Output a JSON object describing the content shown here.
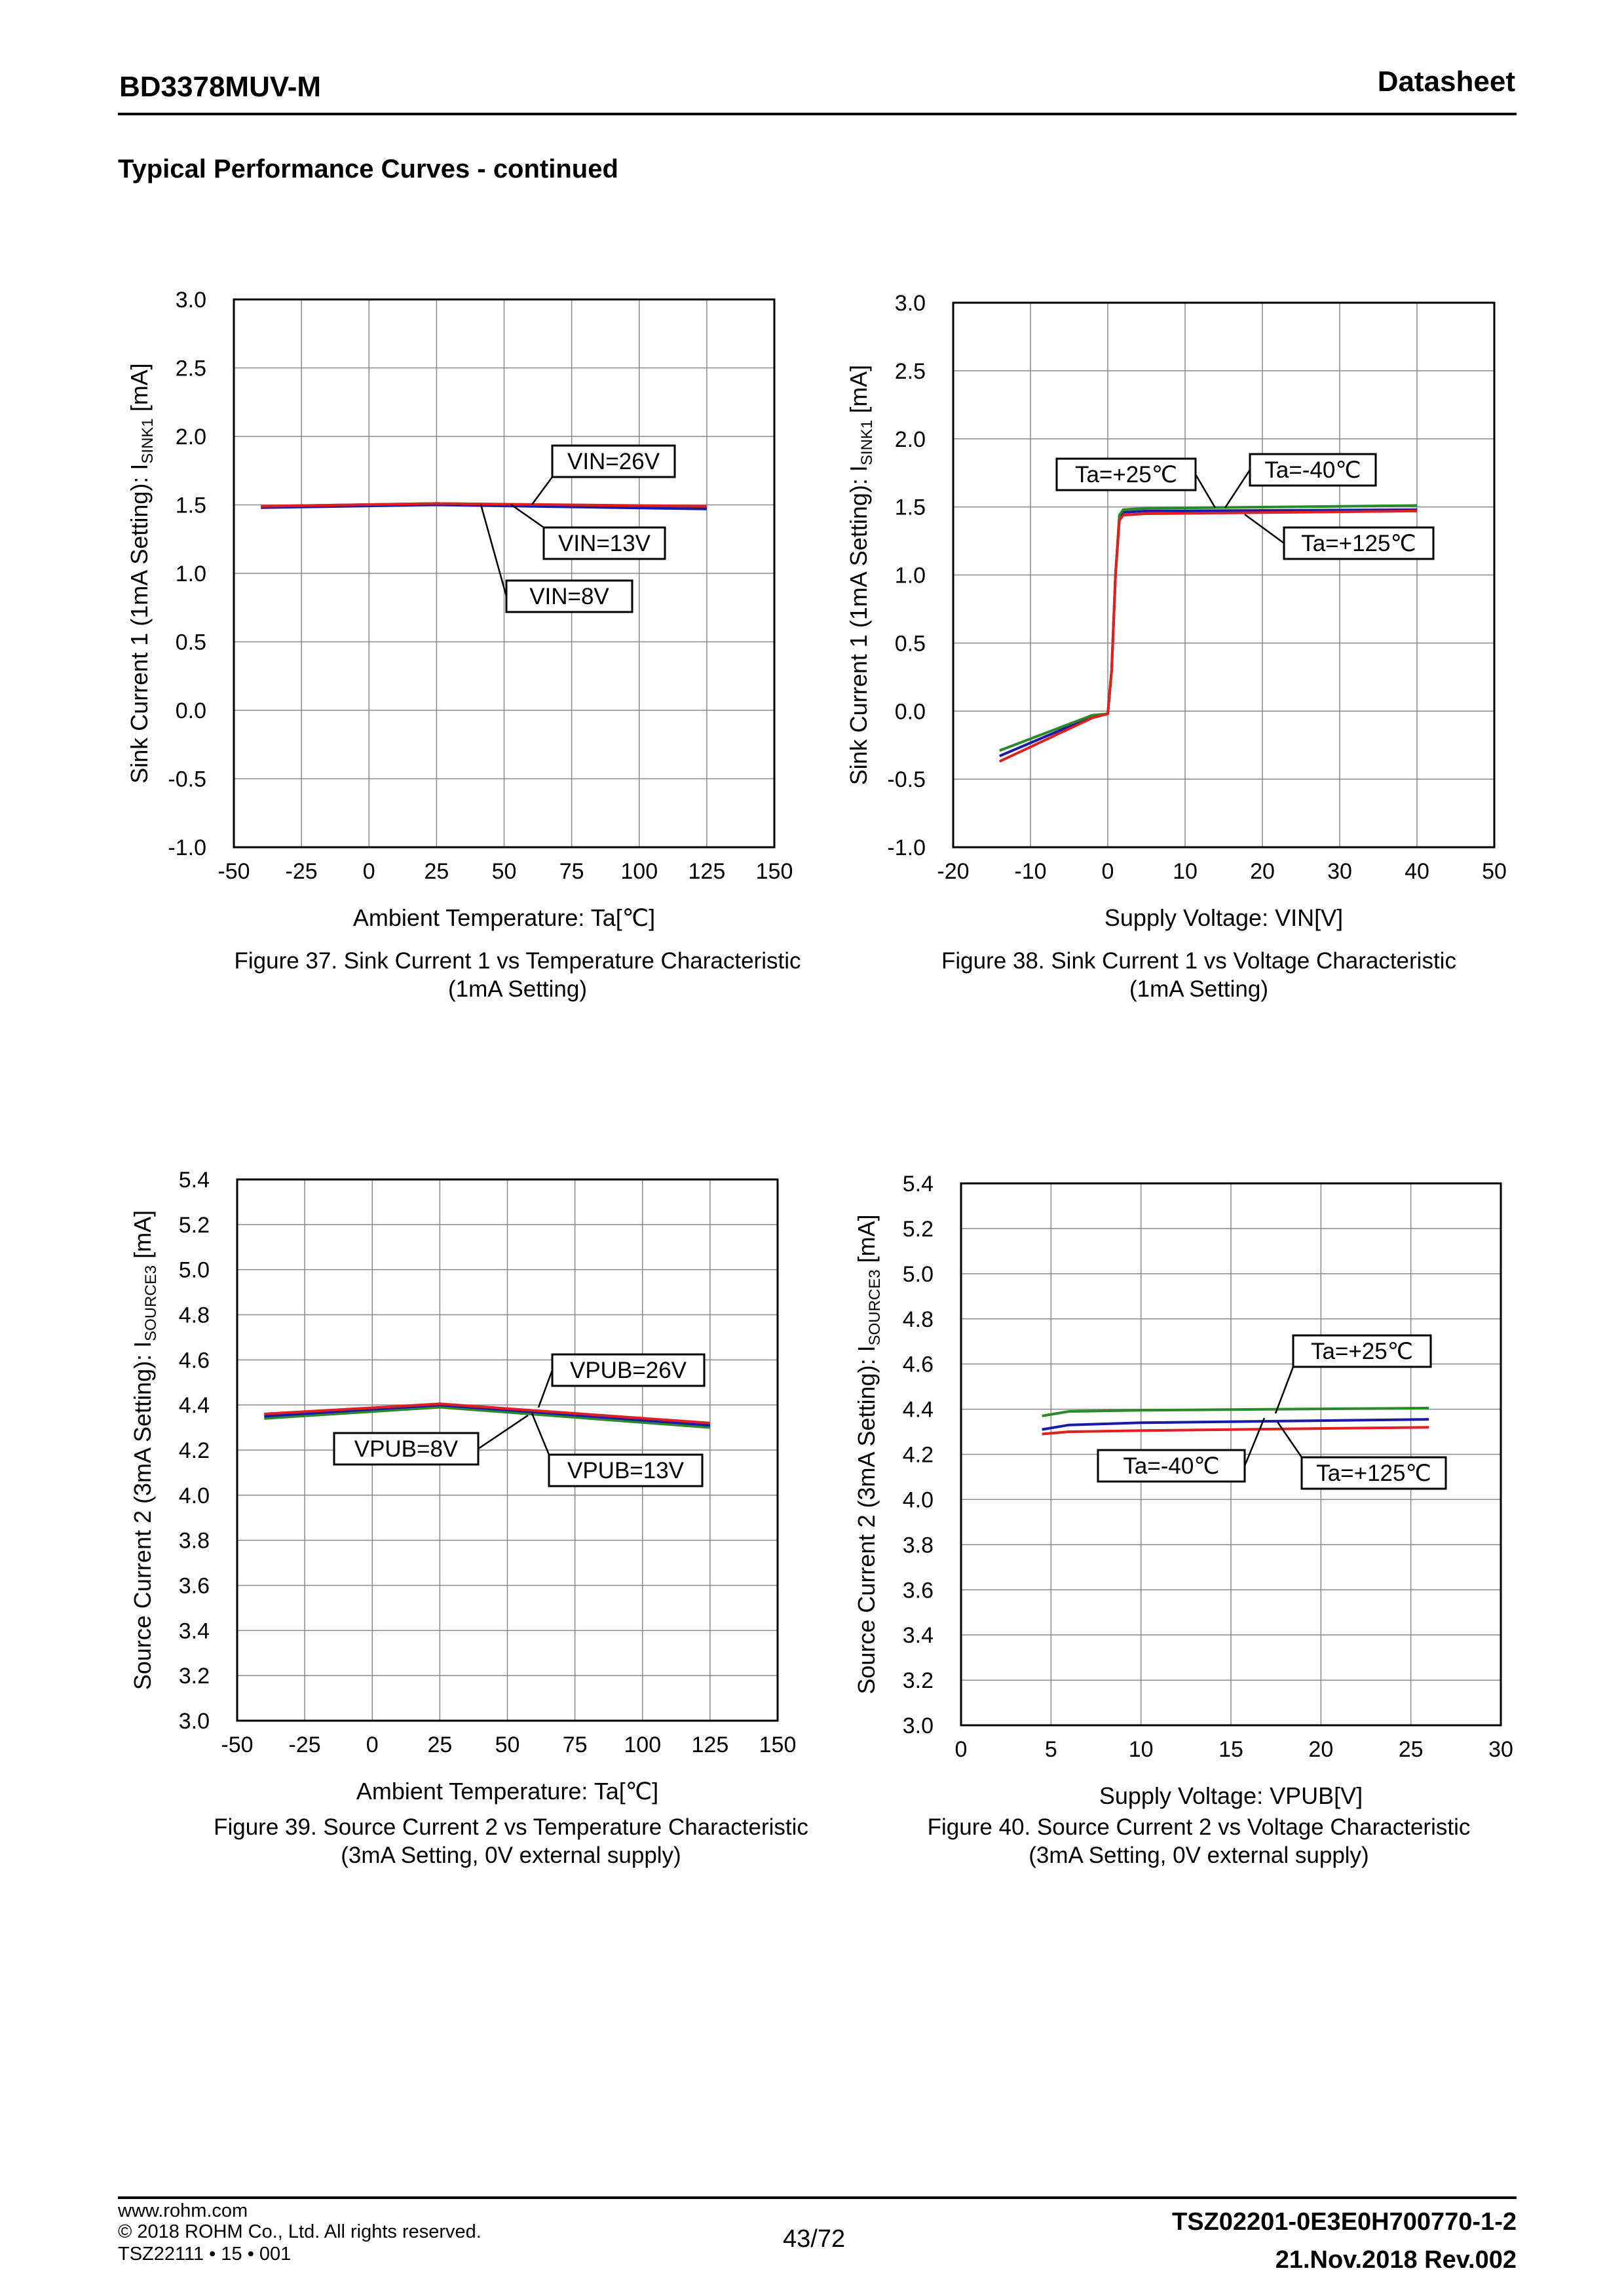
{
  "header": {
    "part_number": "BD3378MUV-M",
    "doc_type": "Datasheet"
  },
  "section_title": "Typical Performance Curves - continued",
  "figures": [
    {
      "caption_line1": "Figure 37. Sink Current 1 vs Temperature Characteristic",
      "caption_line2": "(1mA Setting)",
      "ylabel_main": "Sink Current 1 (1mA Setting): I",
      "ylabel_sub": "SINK1",
      "ylabel_unit": " [mA]",
      "xlabel": "Ambient Temperature: Ta[℃]"
    },
    {
      "caption_line1": "Figure 38. Sink Current 1 vs Voltage Characteristic",
      "caption_line2": "(1mA Setting)",
      "ylabel_main": "Sink Current 1 (1mA Setting): I",
      "ylabel_sub": "SINK1",
      "ylabel_unit": " [mA]",
      "xlabel": "Supply Voltage: VIN[V]"
    },
    {
      "caption_line1": "Figure 39. Source Current 2 vs Temperature Characteristic",
      "caption_line2": "(3mA Setting, 0V external supply)",
      "ylabel_main": "Source Current 2 (3mA Setting): I",
      "ylabel_sub": "SOURCE3",
      "ylabel_unit": " [mA]",
      "xlabel": "Ambient Temperature: Ta[℃]"
    },
    {
      "caption_line1": "Figure 40. Source Current 2 vs Voltage Characteristic",
      "caption_line2": "(3mA Setting, 0V external supply)",
      "ylabel_main": "Source Current 2 (3mA Setting): I",
      "ylabel_sub": "SOURCE3",
      "ylabel_unit": " [mA]",
      "xlabel": "Supply Voltage: VPUB[V]"
    }
  ],
  "chart_data": [
    {
      "type": "line",
      "title": "Figure 37. Sink Current 1 vs Temperature Characteristic (1mA Setting)",
      "xlabel": "Ambient Temperature: Ta[℃]",
      "ylabel": "Sink Current 1 (1mA Setting): ISINK1 [mA]",
      "xlim": [
        -50,
        150
      ],
      "ylim": [
        -1.0,
        3.0
      ],
      "xticks": [
        "-50",
        "-25",
        "0",
        "25",
        "50",
        "75",
        "100",
        "125",
        "150"
      ],
      "yticks": [
        "-1.0",
        "-0.5",
        "0.0",
        "0.5",
        "1.0",
        "1.5",
        "2.0",
        "2.5",
        "3.0"
      ],
      "grid": true,
      "series": [
        {
          "name": "VIN=8V",
          "color": "#2a8a2a",
          "x": [
            -40,
            25,
            125
          ],
          "y": [
            1.49,
            1.51,
            1.48
          ]
        },
        {
          "name": "VIN=13V",
          "color": "#1a1aa8",
          "x": [
            -40,
            25,
            125
          ],
          "y": [
            1.48,
            1.5,
            1.47
          ]
        },
        {
          "name": "VIN=26V",
          "color": "#e02020",
          "x": [
            -40,
            25,
            125
          ],
          "y": [
            1.49,
            1.51,
            1.49
          ]
        }
      ],
      "annotations": [
        "VIN=26V",
        "VIN=13V",
        "VIN=8V"
      ]
    },
    {
      "type": "line",
      "title": "Figure 38. Sink Current 1 vs Voltage Characteristic (1mA Setting)",
      "xlabel": "Supply Voltage: VIN[V]",
      "ylabel": "Sink Current 1 (1mA Setting): ISINK1 [mA]",
      "xlim": [
        -20,
        50
      ],
      "ylim": [
        -1.0,
        3.0
      ],
      "xticks": [
        "-20",
        "-10",
        "0",
        "10",
        "20",
        "30",
        "40",
        "50"
      ],
      "yticks": [
        "-1.0",
        "-0.5",
        "0.0",
        "0.5",
        "1.0",
        "1.5",
        "2.0",
        "2.5",
        "3.0"
      ],
      "grid": true,
      "series": [
        {
          "name": "Ta=+25℃",
          "color": "#1a1aa8",
          "x": [
            -14,
            -2,
            0,
            0.5,
            1,
            1.5,
            2,
            5,
            40
          ],
          "y": [
            -0.33,
            -0.04,
            -0.02,
            0.3,
            1.0,
            1.42,
            1.46,
            1.47,
            1.48
          ]
        },
        {
          "name": "Ta=-40℃",
          "color": "#2a8a2a",
          "x": [
            -14,
            -2,
            0,
            0.5,
            1,
            1.5,
            2,
            5,
            40
          ],
          "y": [
            -0.29,
            -0.03,
            -0.02,
            0.3,
            1.0,
            1.44,
            1.48,
            1.49,
            1.51
          ]
        },
        {
          "name": "Ta=+125℃",
          "color": "#e02020",
          "x": [
            -14,
            -2,
            0,
            0.5,
            1,
            1.5,
            2,
            5,
            40
          ],
          "y": [
            -0.37,
            -0.05,
            -0.02,
            0.3,
            1.0,
            1.4,
            1.44,
            1.45,
            1.47
          ]
        }
      ],
      "annotations": [
        "Ta=+25℃",
        "Ta=-40℃",
        "Ta=+125℃"
      ]
    },
    {
      "type": "line",
      "title": "Figure 39. Source Current 2 vs Temperature Characteristic (3mA Setting, 0V external supply)",
      "xlabel": "Ambient Temperature: Ta[℃]",
      "ylabel": "Source Current 2 (3mA Setting): ISOURCE3 [mA]",
      "xlim": [
        -50,
        150
      ],
      "ylim": [
        3.0,
        5.4
      ],
      "xticks": [
        "-50",
        "-25",
        "0",
        "25",
        "50",
        "75",
        "100",
        "125",
        "150"
      ],
      "yticks": [
        "3.0",
        "3.2",
        "3.4",
        "3.6",
        "3.8",
        "4.0",
        "4.2",
        "4.4",
        "4.6",
        "4.8",
        "5.0",
        "5.2",
        "5.4"
      ],
      "grid": true,
      "series": [
        {
          "name": "VPUB=8V",
          "color": "#2a8a2a",
          "x": [
            -40,
            25,
            125
          ],
          "y": [
            4.34,
            4.39,
            4.3
          ]
        },
        {
          "name": "VPUB=13V",
          "color": "#1a1aa8",
          "x": [
            -40,
            25,
            125
          ],
          "y": [
            4.35,
            4.4,
            4.31
          ]
        },
        {
          "name": "VPUB=26V",
          "color": "#e02020",
          "x": [
            -40,
            25,
            125
          ],
          "y": [
            4.36,
            4.405,
            4.32
          ]
        }
      ],
      "annotations": [
        "VPUB=26V",
        "VPUB=8V",
        "VPUB=13V"
      ]
    },
    {
      "type": "line",
      "title": "Figure 40. Source Current 2 vs Voltage Characteristic (3mA Setting, 0V external supply)",
      "xlabel": "Supply Voltage: VPUB[V]",
      "ylabel": "Source Current 2 (3mA Setting): ISOURCE3 [mA]",
      "xlim": [
        0,
        30
      ],
      "ylim": [
        3.0,
        5.4
      ],
      "xticks": [
        "0",
        "5",
        "10",
        "15",
        "20",
        "25",
        "30"
      ],
      "yticks": [
        "3.0",
        "3.2",
        "3.4",
        "3.6",
        "3.8",
        "4.0",
        "4.2",
        "4.4",
        "4.6",
        "4.8",
        "5.0",
        "5.2",
        "5.4"
      ],
      "grid": true,
      "series": [
        {
          "name": "Ta=+25℃",
          "color": "#1a1aa8",
          "x": [
            4.5,
            6,
            10,
            26
          ],
          "y": [
            4.31,
            4.33,
            4.34,
            4.355
          ]
        },
        {
          "name": "Ta=-40℃",
          "color": "#2a8a2a",
          "x": [
            4.5,
            6,
            10,
            26
          ],
          "y": [
            4.37,
            4.39,
            4.395,
            4.405
          ]
        },
        {
          "name": "Ta=+125℃",
          "color": "#e02020",
          "x": [
            4.5,
            6,
            10,
            26
          ],
          "y": [
            4.29,
            4.3,
            4.305,
            4.32
          ]
        }
      ],
      "annotations": [
        "Ta=+25℃",
        "Ta=-40℃",
        "Ta=+125℃"
      ]
    }
  ],
  "footer": {
    "url": "www.rohm.com",
    "copyright": "© 2018 ROHM Co., Ltd. All rights reserved.",
    "form_code": "TSZ22111 • 15 • 001",
    "page": "43/72",
    "doc_id": "TSZ02201-0E3E0H700770-1-2",
    "date_rev": "21.Nov.2018 Rev.002"
  }
}
